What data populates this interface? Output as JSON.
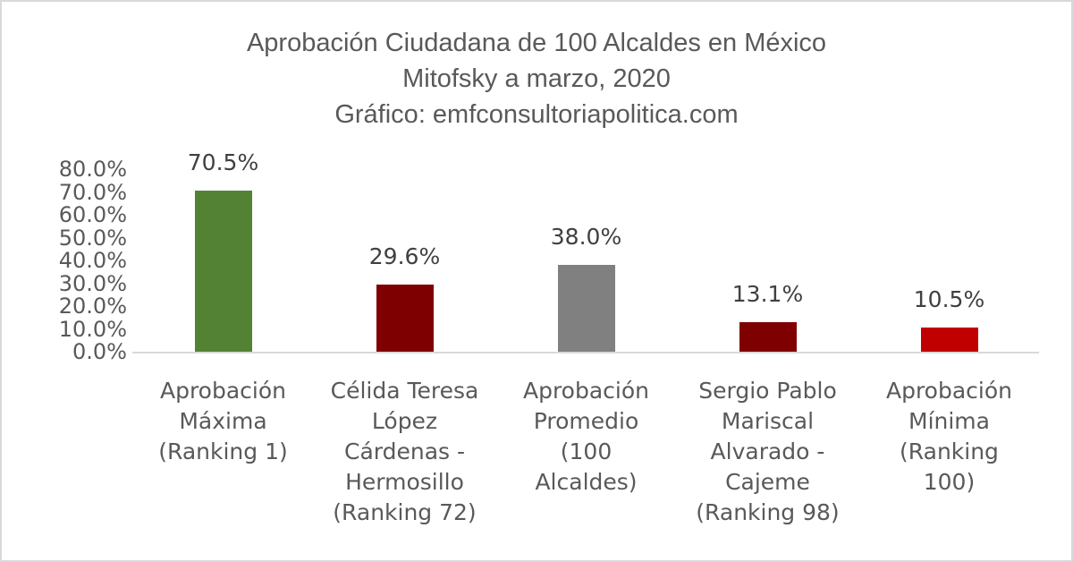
{
  "title": {
    "line1": "Aprobación Ciudadana de 100 Alcaldes en México",
    "line2": "Mitofsky a marzo, 2020",
    "line3": "Gráfico: emfconsultoriapolitica.com"
  },
  "yaxis": {
    "ticks": [
      "80.0%",
      "70.0%",
      "60.0%",
      "50.0%",
      "40.0%",
      "30.0%",
      "20.0%",
      "10.0%",
      "0.0%"
    ]
  },
  "bars": [
    {
      "label_lines": [
        "Aprobación",
        "Máxima",
        "(Ranking 1)"
      ],
      "value_label": "70.5%",
      "color": "#548235"
    },
    {
      "label_lines": [
        "Célida Teresa",
        "López",
        "Cárdenas -",
        "Hermosillo",
        "(Ranking 72)"
      ],
      "value_label": "29.6%",
      "color": "#7f0000"
    },
    {
      "label_lines": [
        "Aprobación",
        "Promedio",
        "(100",
        "Alcaldes)"
      ],
      "value_label": "38.0%",
      "color": "#808080"
    },
    {
      "label_lines": [
        "Sergio Pablo",
        "Mariscal",
        "Alvarado -",
        "Cajeme",
        "(Ranking 98)"
      ],
      "value_label": "13.1%",
      "color": "#7f0000"
    },
    {
      "label_lines": [
        "Aprobación",
        "Mínima",
        "(Ranking",
        "100)"
      ],
      "value_label": "10.5%",
      "color": "#c00000"
    }
  ],
  "chart_data": {
    "type": "bar",
    "title": "Aprobación Ciudadana de 100 Alcaldes en México / Mitofsky a marzo, 2020 / Gráfico: emfconsultoriapolitica.com",
    "categories": [
      "Aprobación Máxima (Ranking 1)",
      "Célida Teresa López Cárdenas - Hermosillo (Ranking 72)",
      "Aprobación Promedio (100 Alcaldes)",
      "Sergio Pablo Mariscal Alvarado - Cajeme (Ranking 98)",
      "Aprobación Mínima (Ranking 100)"
    ],
    "values": [
      70.5,
      29.6,
      38.0,
      13.1,
      10.5
    ],
    "colors": [
      "#548235",
      "#7f0000",
      "#808080",
      "#7f0000",
      "#c00000"
    ],
    "xlabel": "",
    "ylabel": "",
    "ylim": [
      0,
      80
    ],
    "yticks": [
      0,
      10,
      20,
      30,
      40,
      50,
      60,
      70,
      80
    ],
    "ytick_format": "0.0%",
    "grid": false,
    "legend": "none",
    "data_labels": true
  }
}
